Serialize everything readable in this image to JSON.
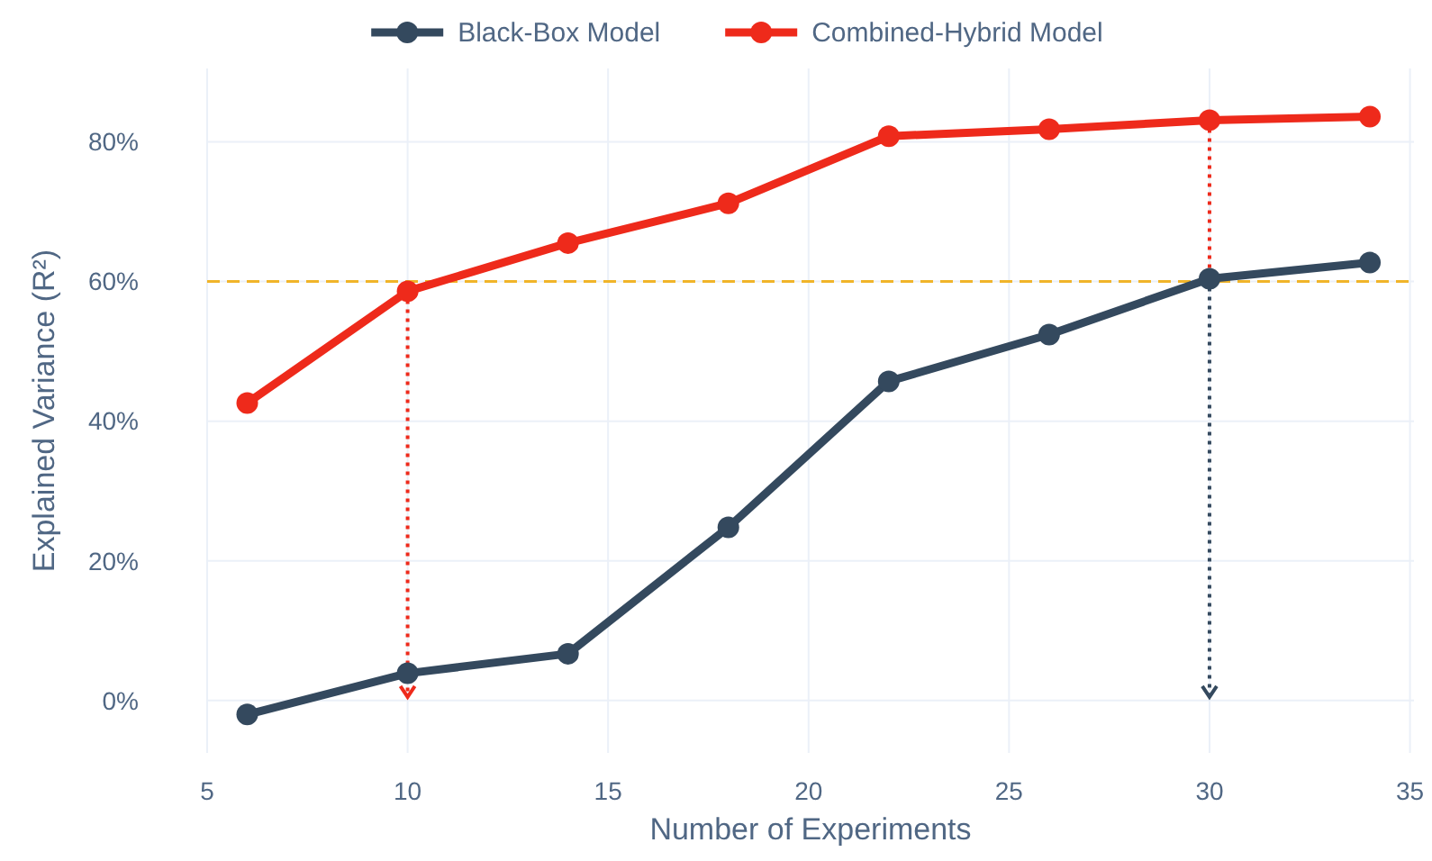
{
  "chart_data": {
    "type": "line",
    "xlabel": "Number of Experiments",
    "ylabel": "Explained Variance (R²)",
    "x": [
      6,
      10,
      14,
      18,
      22,
      26,
      30,
      34
    ],
    "series": [
      {
        "name": "Black-Box Model",
        "color": "#34495e",
        "values": [
          -2,
          3.9,
          6.7,
          24.8,
          45.7,
          52.4,
          60.4,
          62.7
        ]
      },
      {
        "name": "Combined-Hybrid Model",
        "color": "#ee2a1b",
        "values": [
          42.6,
          58.6,
          65.5,
          71.2,
          80.8,
          81.8,
          83.1,
          83.6
        ]
      }
    ],
    "xlim": [
      5,
      35.1
    ],
    "xticks": [
      5,
      10,
      15,
      20,
      25,
      30,
      35
    ],
    "ylim": [
      -7.5,
      90.5
    ],
    "yticks": [
      {
        "value": 0,
        "label": "0%"
      },
      {
        "value": 20,
        "label": "20%"
      },
      {
        "value": 40,
        "label": "40%"
      },
      {
        "value": 60,
        "label": "60%"
      },
      {
        "value": 80,
        "label": "80%"
      }
    ],
    "ref_lines": [
      {
        "axis": "y",
        "value": 60,
        "color": "#f0b429",
        "line_style": "dashed"
      },
      {
        "axis": "x",
        "value": 10,
        "color": "#ee2a1b",
        "line_style": "dotted"
      },
      {
        "axis": "x",
        "value": 30,
        "color": "#ee2a1b",
        "line_style": "dotted"
      },
      {
        "axis": "x",
        "value": 30,
        "color": "#34495e",
        "line_style": "dotted"
      }
    ],
    "grid": true,
    "legend": "top",
    "marker": "circle",
    "line_style": "solid"
  }
}
